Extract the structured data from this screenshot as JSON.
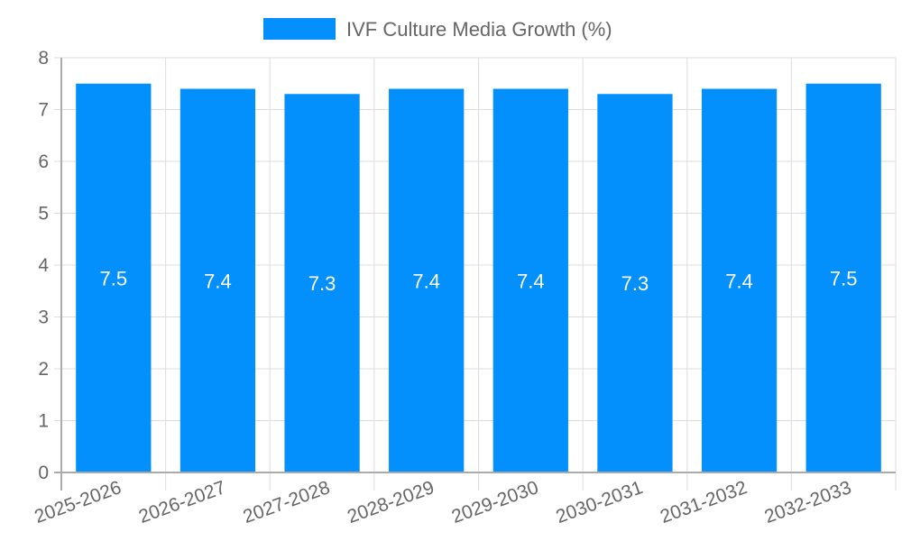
{
  "chart_data": {
    "type": "bar",
    "title": "",
    "legend": {
      "label": "IVF Culture Media Growth (%)",
      "position": "top",
      "color": "#0390FC"
    },
    "categories": [
      "2025-2026",
      "2026-2027",
      "2027-2028",
      "2028-2029",
      "2029-2030",
      "2030-2031",
      "2031-2032",
      "2032-2033"
    ],
    "values": [
      7.5,
      7.4,
      7.3,
      7.4,
      7.4,
      7.3,
      7.4,
      7.5
    ],
    "data_labels": [
      "7.5",
      "7.4",
      "7.3",
      "7.4",
      "7.4",
      "7.3",
      "7.4",
      "7.5"
    ],
    "xlabel": "",
    "ylabel": "",
    "ylim": [
      0,
      8
    ],
    "yticks": [
      "0",
      "1",
      "2",
      "3",
      "4",
      "5",
      "6",
      "7",
      "8"
    ],
    "grid": true
  }
}
